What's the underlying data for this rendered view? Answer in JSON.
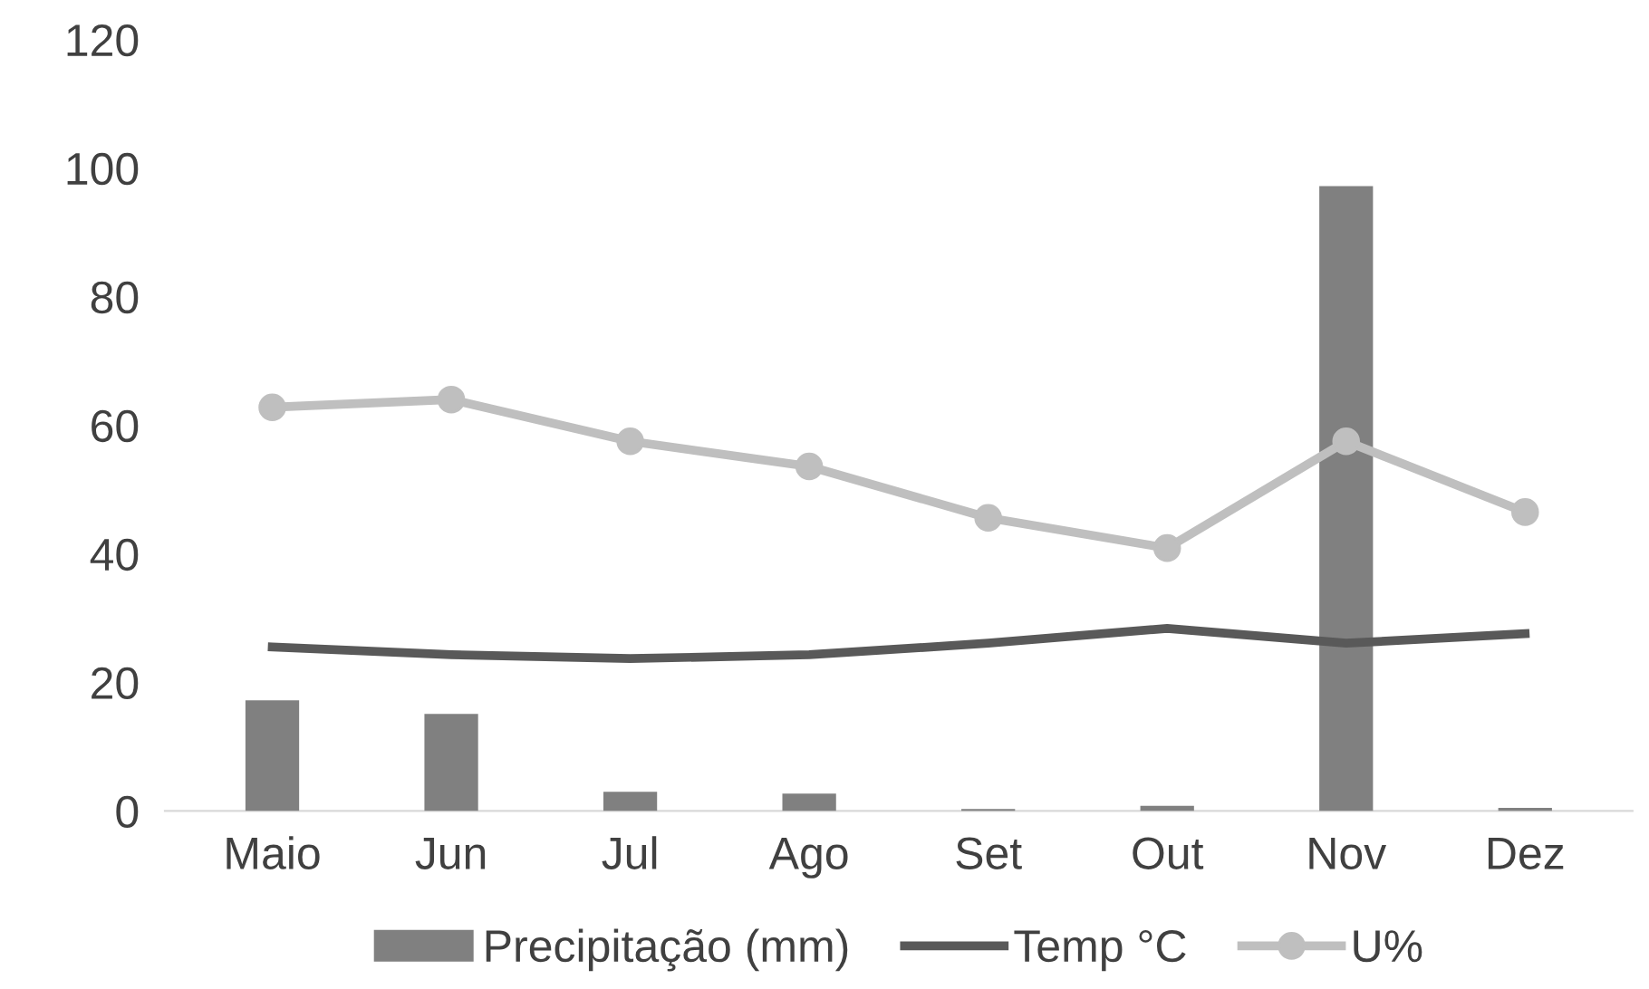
{
  "chart_data": {
    "type": "bar",
    "categories": [
      "Maio",
      "Jun",
      "Jul",
      "Ago",
      "Set",
      "Out",
      "Nov",
      "Dez"
    ],
    "series": [
      {
        "name": "Precipitação (mm)",
        "color": "#808080",
        "values": [
          17.2,
          15.1,
          3.0,
          2.7,
          0.3,
          0.8,
          97.2,
          0.5
        ]
      },
      {
        "name": "Temp °C",
        "type": "line",
        "color": "#595959",
        "marker": "none",
        "values": [
          25.5,
          24.3,
          23.7,
          24.3,
          26.1,
          28.4,
          26.1,
          27.6
        ]
      },
      {
        "name": "U%",
        "type": "line",
        "color": "#bfbfbf",
        "marker": "circle",
        "values": [
          62.8,
          64.0,
          57.5,
          53.6,
          45.6,
          40.9,
          57.5,
          46.5
        ]
      }
    ],
    "ylim": [
      0,
      120
    ],
    "yticks": [
      0,
      20,
      40,
      60,
      80,
      100,
      120
    ],
    "grid": false,
    "legend": "bottom"
  }
}
